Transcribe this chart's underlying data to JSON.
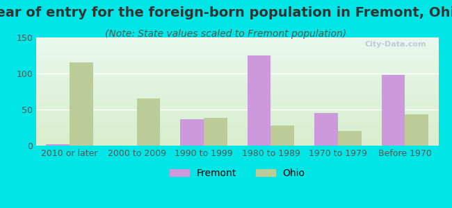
{
  "title": "Year of entry for the foreign-born population in Fremont, Ohio",
  "subtitle": "(Note: State values scaled to Fremont population)",
  "categories": [
    "2010 or later",
    "2000 to 2009",
    "1990 to 1999",
    "1980 to 1989",
    "1970 to 1979",
    "Before 1970"
  ],
  "fremont_values": [
    2,
    0,
    37,
    125,
    45,
    98
  ],
  "ohio_values": [
    115,
    65,
    38,
    28,
    20,
    43
  ],
  "fremont_color": "#cc99dd",
  "ohio_color": "#bbcc99",
  "background_outer": "#00e5e5",
  "background_inner_top": "#e8f8ee",
  "background_inner_bottom": "#d8eecc",
  "ylim": [
    0,
    150
  ],
  "yticks": [
    0,
    50,
    100,
    150
  ],
  "bar_width": 0.35,
  "title_fontsize": 14,
  "subtitle_fontsize": 10,
  "tick_fontsize": 9,
  "legend_fontsize": 10
}
